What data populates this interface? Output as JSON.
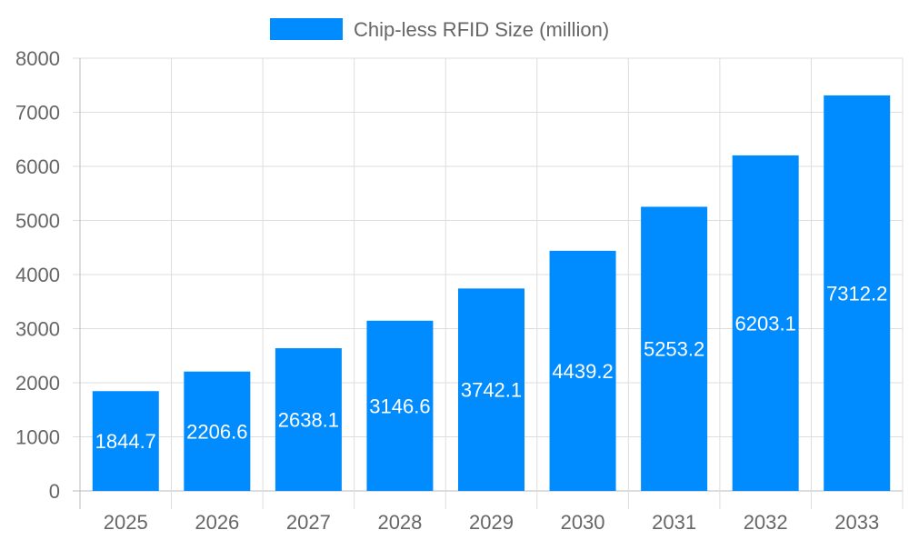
{
  "chart_data": {
    "type": "bar",
    "title": "",
    "xlabel": "",
    "ylabel": "",
    "categories": [
      "2025",
      "2026",
      "2027",
      "2028",
      "2029",
      "2030",
      "2031",
      "2032",
      "2033"
    ],
    "series": [
      {
        "name": "Chip-less RFID Size (million)",
        "values": [
          1844.7,
          2206.6,
          2638.1,
          3146.6,
          3742.1,
          4439.2,
          5253.2,
          6203.1,
          7312.2
        ],
        "color": "#008cff"
      }
    ],
    "ylim": [
      0,
      8000
    ],
    "yticks": [
      0,
      1000,
      2000,
      3000,
      4000,
      5000,
      6000,
      7000,
      8000
    ],
    "grid": true,
    "legend": "top",
    "data_labels": true
  }
}
